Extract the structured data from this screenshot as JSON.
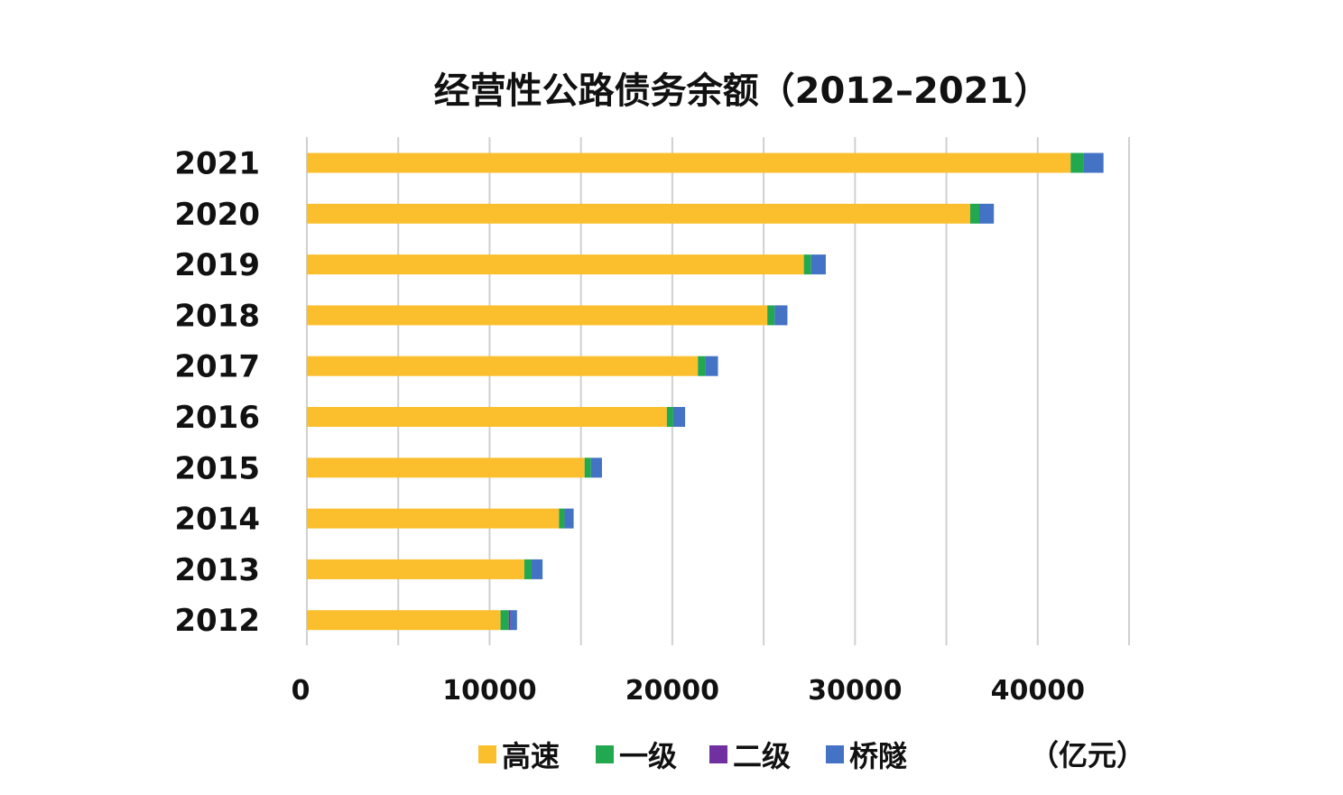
{
  "chart_data": {
    "type": "bar",
    "orientation": "horizontal",
    "stacked": true,
    "title": "经营性公路债务余额（2012–2021）",
    "unit_label": "（亿元）",
    "categories": [
      "2021",
      "2020",
      "2019",
      "2018",
      "2017",
      "2016",
      "2015",
      "2014",
      "2013",
      "2012"
    ],
    "series": [
      {
        "name": "高速",
        "color": "#FBBF2E",
        "values": [
          41800,
          36300,
          27200,
          25200,
          21400,
          19700,
          15200,
          13800,
          11900,
          10600
        ]
      },
      {
        "name": "一级",
        "color": "#22A94F",
        "values": [
          700,
          500,
          400,
          400,
          400,
          350,
          350,
          300,
          400,
          450
        ]
      },
      {
        "name": "二级",
        "color": "#7030A0",
        "values": [
          0,
          0,
          0,
          0,
          0,
          0,
          0,
          0,
          0,
          100
        ]
      },
      {
        "name": "桥隧",
        "color": "#4472C4",
        "values": [
          1100,
          800,
          800,
          700,
          700,
          650,
          600,
          500,
          600,
          350
        ]
      }
    ],
    "xlim": [
      0,
      45000
    ],
    "xticks": [
      0,
      10000,
      20000,
      30000,
      40000
    ],
    "xtick_labels": [
      "0",
      "10000",
      "20000",
      "30000",
      "40000"
    ],
    "gridlines_every": 5000,
    "grid": true,
    "legend_position": "bottom"
  }
}
